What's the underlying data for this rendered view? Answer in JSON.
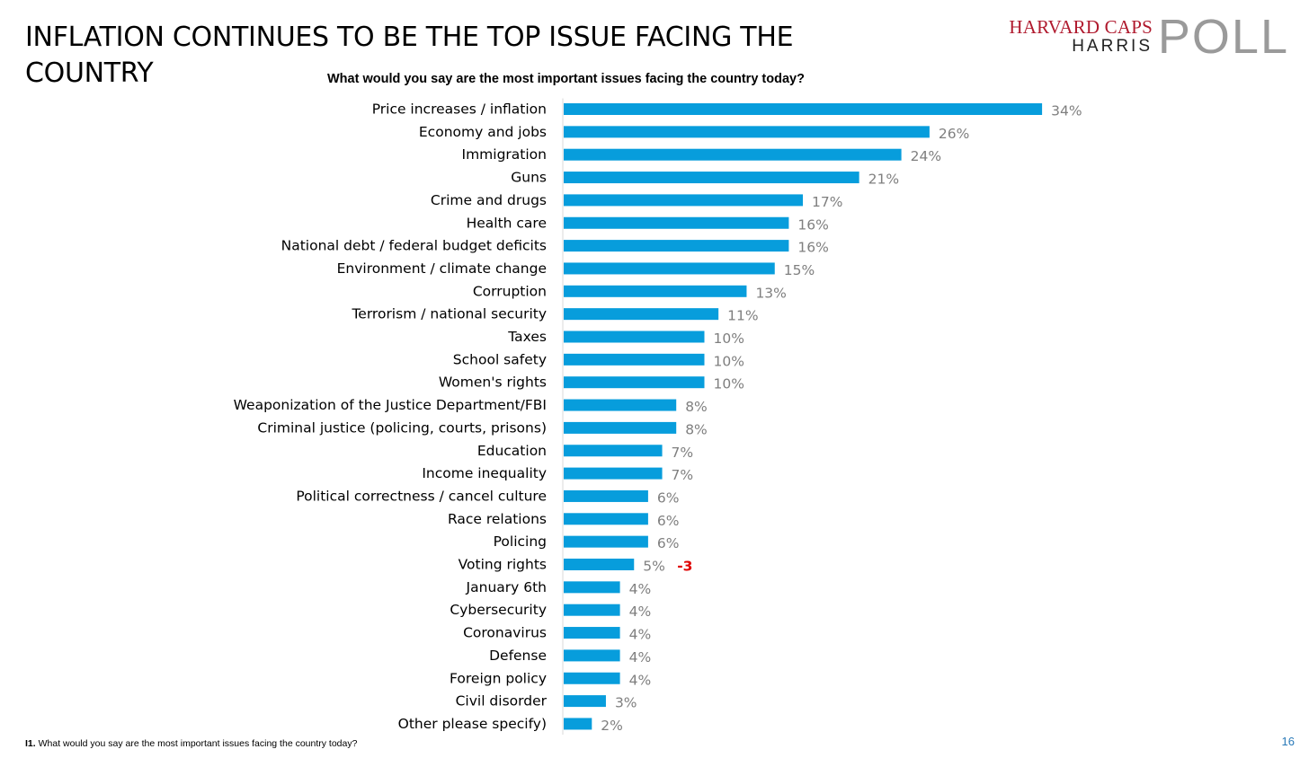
{
  "slide": {
    "title": "INFLATION CONTINUES TO BE THE TOP ISSUE FACING THE COUNTRY",
    "footnote_code": "I1.",
    "footnote_text": " What would you say are the most important issues facing the country today?",
    "page_number": "16"
  },
  "logo": {
    "line1": "HARVARD CAPS",
    "line2": "HARRIS",
    "line3": "POLL"
  },
  "chart_data": {
    "type": "bar",
    "orientation": "horizontal",
    "title": "What would you say are the most important issues facing the country today?",
    "categories": [
      "Price increases / inflation",
      "Economy and jobs",
      "Immigration",
      "Guns",
      "Crime and drugs",
      "Health care",
      "National debt / federal budget deficits",
      "Environment / climate change",
      "Corruption",
      "Terrorism / national security",
      "Taxes",
      "School safety",
      "Women's rights",
      "Weaponization of the Justice Department/FBI",
      "Criminal justice (policing, courts, prisons)",
      "Education",
      "Income inequality",
      "Political correctness / cancel culture",
      "Race relations",
      "Policing",
      "Voting rights",
      "January 6th",
      "Cybersecurity",
      "Coronavirus",
      "Defense",
      "Foreign policy",
      "Civil disorder",
      "Other please specify)"
    ],
    "values": [
      34,
      26,
      24,
      21,
      17,
      16,
      16,
      15,
      13,
      11,
      10,
      10,
      10,
      8,
      8,
      7,
      7,
      6,
      6,
      6,
      5,
      4,
      4,
      4,
      4,
      4,
      3,
      2
    ],
    "value_labels": [
      "34%",
      "26%",
      "24%",
      "21%",
      "17%",
      "16%",
      "16%",
      "15%",
      "13%",
      "11%",
      "10%",
      "10%",
      "10%",
      "8%",
      "8%",
      "7%",
      "7%",
      "6%",
      "6%",
      "6%",
      "5%",
      "4%",
      "4%",
      "4%",
      "4%",
      "4%",
      "3%",
      "2%"
    ],
    "annotations": [
      {
        "category": "Voting rights",
        "text": "-3",
        "color": "#e00000"
      }
    ],
    "xlim": [
      0,
      36
    ],
    "grid": false,
    "bar_color": "#079ddc",
    "label_color": "#7f7f7f"
  }
}
